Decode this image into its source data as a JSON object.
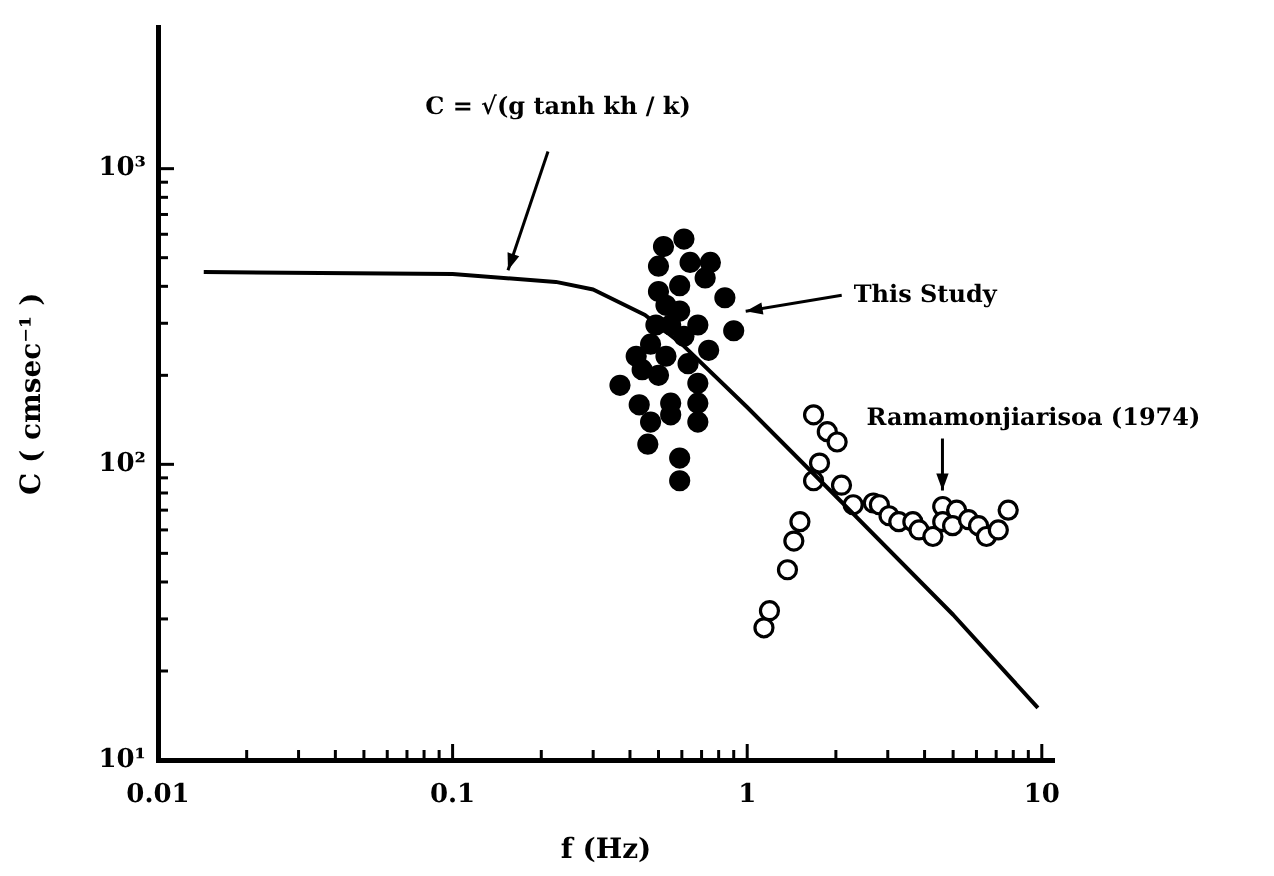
{
  "chart_data": {
    "type": "scatter",
    "xlabel": "f (Hz)",
    "ylabel": "C ( cmsec⁻¹ )",
    "log": "xy",
    "grid": false,
    "legend": false,
    "marker": "circle",
    "xlim": [
      0.01,
      11
    ],
    "ylim": [
      10,
      3000
    ],
    "xticks": [
      {
        "value": 0.01,
        "label": "0.01"
      },
      {
        "value": 0.02,
        "label": null
      },
      {
        "value": 0.03,
        "label": null
      },
      {
        "value": 0.04,
        "label": null
      },
      {
        "value": 0.05,
        "label": null
      },
      {
        "value": 0.06,
        "label": null
      },
      {
        "value": 0.07,
        "label": null
      },
      {
        "value": 0.08,
        "label": null
      },
      {
        "value": 0.09,
        "label": null
      },
      {
        "value": 0.1,
        "label": "0.1"
      },
      {
        "value": 0.2,
        "label": null
      },
      {
        "value": 0.3,
        "label": null
      },
      {
        "value": 0.4,
        "label": null
      },
      {
        "value": 0.5,
        "label": null
      },
      {
        "value": 0.6,
        "label": null
      },
      {
        "value": 0.7,
        "label": null
      },
      {
        "value": 0.8,
        "label": null
      },
      {
        "value": 0.9,
        "label": null
      },
      1,
      {
        "value": 2,
        "label": null
      },
      {
        "value": 3,
        "label": null
      },
      {
        "value": 4,
        "label": null
      },
      {
        "value": 5,
        "label": null
      },
      {
        "value": 6,
        "label": null
      },
      {
        "value": 7,
        "label": null
      },
      {
        "value": 8,
        "label": null
      },
      {
        "value": 9,
        "label": null
      },
      10
    ],
    "yticks": [
      {
        "value": 10,
        "label": "10¹"
      },
      {
        "value": 20,
        "label": null
      },
      {
        "value": 30,
        "label": null
      },
      {
        "value": 40,
        "label": null
      },
      {
        "value": 50,
        "label": null
      },
      {
        "value": 60,
        "label": null
      },
      {
        "value": 70,
        "label": null
      },
      {
        "value": 80,
        "label": null
      },
      {
        "value": 90,
        "label": null
      },
      {
        "value": 100,
        "label": "10²"
      },
      {
        "value": 200,
        "label": null
      },
      {
        "value": 300,
        "label": null
      },
      {
        "value": 400,
        "label": null
      },
      {
        "value": 500,
        "label": null
      },
      {
        "value": 600,
        "label": null
      },
      {
        "value": 700,
        "label": null
      },
      {
        "value": 800,
        "label": null
      },
      {
        "value": 900,
        "label": null
      },
      {
        "value": 1000,
        "label": "10³"
      }
    ],
    "series": [
      {
        "type": "line",
        "color": "#000000",
        "line_style": "solid",
        "marker": "none",
        "x": [
          0.0143,
          0.1,
          0.224,
          0.3,
          0.45,
          0.6,
          1,
          2,
          5,
          9.7
        ],
        "values": [
          447,
          440,
          414,
          390,
          320,
          255,
          156,
          78,
          31,
          15
        ]
      },
      {
        "color": "#000000",
        "x": [
          0.61,
          0.52,
          0.5,
          0.64,
          0.75,
          0.59,
          0.84,
          0.9,
          0.5,
          0.49,
          0.55,
          0.61,
          0.74,
          0.47,
          0.42,
          0.37,
          0.44,
          0.5,
          0.43,
          0.55,
          0.47,
          0.68,
          0.68,
          0.46,
          0.59,
          0.59,
          0.55,
          0.68,
          0.63,
          0.53,
          0.68,
          0.59,
          0.72,
          0.53
        ],
        "values": [
          578,
          545,
          468,
          482,
          482,
          402,
          366,
          283,
          384,
          296,
          296,
          271,
          243,
          255,
          232,
          185,
          209,
          200,
          159,
          161,
          139,
          161,
          139,
          117,
          105,
          88,
          147,
          188,
          219,
          232,
          296,
          330,
          427,
          345
        ]
      },
      {
        "color": "#000000",
        "x": [
          1.68,
          1.87,
          2.02,
          1.76,
          1.68,
          2.09,
          2.29,
          2.68,
          2.81,
          3.03,
          3.27,
          3.65,
          3.83,
          4.27,
          4.61,
          4.61,
          5.14,
          4.98,
          5.64,
          6.1,
          6.49,
          7.12,
          7.69,
          1.51,
          1.44,
          1.37,
          1.19,
          1.14
        ],
        "values": [
          147,
          129,
          119,
          101,
          88,
          85,
          73,
          74,
          73,
          67,
          64,
          64,
          60,
          57,
          72,
          64,
          70,
          62,
          65,
          62,
          57,
          60,
          70,
          64,
          55,
          44,
          32,
          28
        ]
      }
    ],
    "annotations": [
      "C = √(g tanh kh / k)",
      {
        "text": "This Study",
        "x": 0.9,
        "y": 300
      },
      {
        "text": "Ramamonjiarisoa (1974)",
        "x": 4.6,
        "y": 72
      }
    ]
  }
}
